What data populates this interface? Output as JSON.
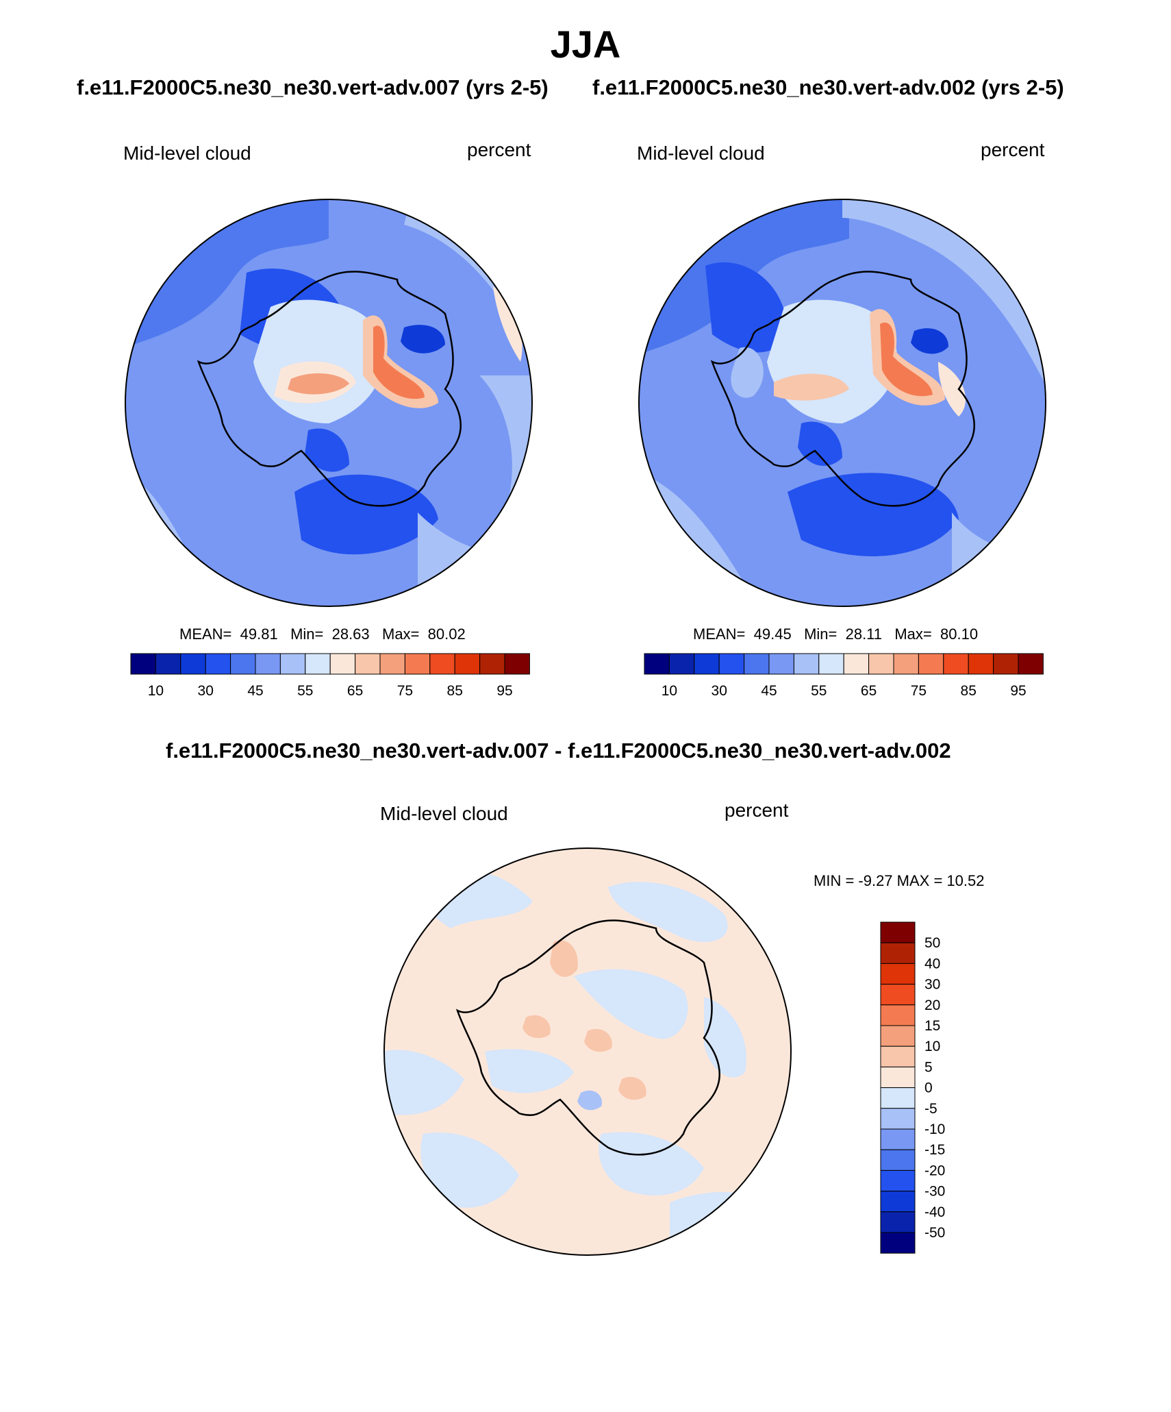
{
  "title": "JJA",
  "case_left": "f.e11.F2000C5.ne30_ne30.vert-adv.007 (yrs 2-5)",
  "case_right": "f.e11.F2000C5.ne30_ne30.vert-adv.002 (yrs 2-5)",
  "diff_title": "f.e11.F2000C5.ne30_ne30.vert-adv.007 - f.e11.F2000C5.ne30_ne30.vert-adv.002",
  "panels": [
    {
      "variable": "Mid-level cloud",
      "units": "percent",
      "mean_label": "MEAN=",
      "mean": "49.81",
      "min_label": "Min=",
      "min": "28.63",
      "max_label": "Max=",
      "max": "80.02"
    },
    {
      "variable": "Mid-level cloud",
      "units": "percent",
      "mean_label": "MEAN=",
      "mean": "49.45",
      "min_label": "Min=",
      "min": "28.11",
      "max_label": "Max=",
      "max": "80.10"
    }
  ],
  "diff_panel": {
    "variable": "Mid-level cloud",
    "units": "percent",
    "minmax_label": "MIN =  -9.27 MAX =  10.52"
  },
  "colorbar_main": {
    "colors": [
      "#00007f",
      "#0a23ad",
      "#0e3bd8",
      "#2452ee",
      "#4b76ee",
      "#7898f3",
      "#a8c1f7",
      "#d6e6fb",
      "#fbe7da",
      "#f8c6ab",
      "#f4a07c",
      "#f47b51",
      "#ef4c21",
      "#de3408",
      "#b02204",
      "#7f0000"
    ],
    "ticks": [
      "10",
      "30",
      "45",
      "55",
      "65",
      "75",
      "85",
      "95"
    ]
  },
  "colorbar_diff": {
    "colors": [
      "#7f0000",
      "#b02204",
      "#de3408",
      "#ef4c21",
      "#f47b51",
      "#f4a07c",
      "#f8c6ab",
      "#fbe7da",
      "#d6e6fb",
      "#a8c1f7",
      "#7898f3",
      "#4b76ee",
      "#2452ee",
      "#0e3bd8",
      "#0a23ad",
      "#00007f"
    ],
    "ticks": [
      "50",
      "40",
      "30",
      "20",
      "15",
      "10",
      "5",
      "0",
      "-5",
      "-10",
      "-15",
      "-20",
      "-30",
      "-40",
      "-50"
    ]
  }
}
